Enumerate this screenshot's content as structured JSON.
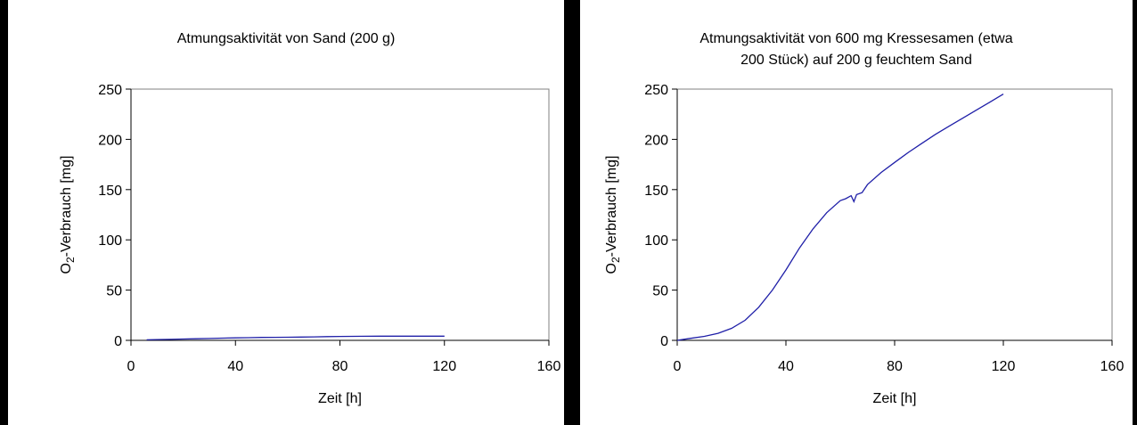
{
  "chart_data": [
    {
      "type": "line",
      "title_lines": [
        "Atmungsaktivität von Sand (200 g)"
      ],
      "xlabel": "Zeit [h]",
      "ylabel_main": "O",
      "ylabel_sub": "2",
      "ylabel_rest": "-Verbrauch [mg]",
      "xlim": [
        0,
        160
      ],
      "ylim": [
        0,
        250
      ],
      "xticks": [
        "0",
        "40",
        "80",
        "120",
        "160"
      ],
      "yticks": [
        "0",
        "50",
        "100",
        "150",
        "200",
        "250"
      ],
      "grid": false,
      "series_color": "#1f1fa8",
      "series": [
        {
          "x": [
            6,
            10,
            15,
            20,
            25,
            30,
            35,
            40,
            45,
            50,
            55,
            60,
            65,
            70,
            75,
            80,
            85,
            90,
            95,
            100,
            105,
            110,
            115,
            120
          ],
          "y": [
            0.5,
            0.8,
            1.0,
            1.3,
            1.6,
            1.9,
            2.2,
            2.5,
            2.7,
            2.9,
            3.0,
            3.1,
            3.3,
            3.5,
            3.7,
            3.9,
            4.0,
            4.1,
            4.2,
            4.2,
            4.2,
            4.2,
            4.2,
            4.2
          ]
        }
      ]
    },
    {
      "type": "line",
      "title_lines": [
        "Atmungsaktivität von 600 mg Kressesamen (etwa",
        "200 Stück) auf 200 g feuchtem Sand"
      ],
      "xlabel": "Zeit [h]",
      "ylabel_main": "O",
      "ylabel_sub": "2",
      "ylabel_rest": "-Verbrauch [mg]",
      "xlim": [
        0,
        160
      ],
      "ylim": [
        0,
        250
      ],
      "xticks": [
        "0",
        "40",
        "80",
        "120",
        "160"
      ],
      "yticks": [
        "0",
        "50",
        "100",
        "150",
        "200",
        "250"
      ],
      "grid": false,
      "series_color": "#1f1fa8",
      "series": [
        {
          "x": [
            0,
            5,
            10,
            15,
            20,
            25,
            30,
            35,
            40,
            45,
            50,
            55,
            60,
            62,
            64,
            65,
            66,
            68,
            70,
            75,
            80,
            85,
            90,
            95,
            100,
            105,
            110,
            115,
            120
          ],
          "y": [
            0,
            2,
            4,
            7,
            12,
            20,
            33,
            50,
            70,
            92,
            111,
            127,
            139,
            141,
            144,
            138,
            145,
            147,
            155,
            167,
            177,
            187,
            196,
            205,
            213,
            221,
            229,
            237,
            245
          ]
        }
      ]
    }
  ]
}
